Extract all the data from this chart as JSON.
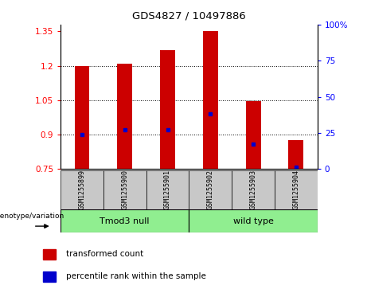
{
  "title": "GDS4827 / 10497886",
  "samples": [
    "GSM1255899",
    "GSM1255900",
    "GSM1255901",
    "GSM1255902",
    "GSM1255903",
    "GSM1255904"
  ],
  "group_labels": [
    "Tmod3 null",
    "wild type"
  ],
  "group_ranges": [
    [
      0,
      2
    ],
    [
      3,
      5
    ]
  ],
  "bar_values": [
    1.2,
    1.21,
    1.27,
    1.35,
    1.045,
    0.875
  ],
  "bar_bottom": 0.75,
  "blue_dot_values": [
    0.902,
    0.923,
    0.923,
    0.99,
    0.858,
    0.758
  ],
  "ylim_left": [
    0.75,
    1.38
  ],
  "ylim_right": [
    0,
    100
  ],
  "yticks_left": [
    0.75,
    0.9,
    1.05,
    1.2,
    1.35
  ],
  "ytick_labels_left": [
    "0.75",
    "0.9",
    "1.05",
    "1.2",
    "1.35"
  ],
  "yticks_right": [
    0,
    25,
    50,
    75,
    100
  ],
  "ytick_labels_right": [
    "0",
    "25",
    "50",
    "75",
    "100%"
  ],
  "bar_color": "#CC0000",
  "dot_color": "#0000CC",
  "bg_group": "#90EE90",
  "bg_sample": "#C8C8C8",
  "legend_label1": "transformed count",
  "legend_label2": "percentile rank within the sample",
  "genotype_label": "genotype/variation",
  "bar_width": 0.35
}
